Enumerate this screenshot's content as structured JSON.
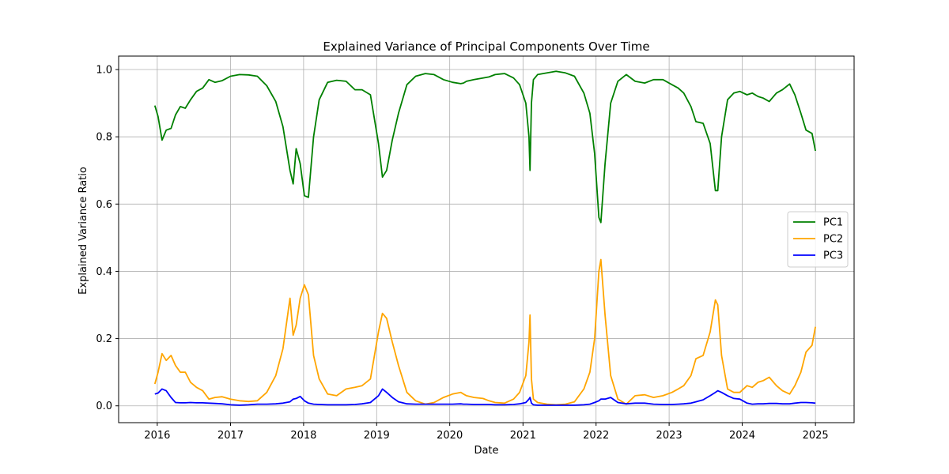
{
  "chart_data": {
    "type": "line",
    "title": "Explained Variance of Principal Components Over Time",
    "xlabel": "Date",
    "ylabel": "Explained Variance Ratio",
    "xlim": [
      "2015-06-22",
      "2025-07-13"
    ],
    "ylim": [
      -0.05,
      1.04
    ],
    "x_ticks": [
      "2016",
      "2017",
      "2018",
      "2019",
      "2020",
      "2021",
      "2022",
      "2023",
      "2024",
      "2025"
    ],
    "y_ticks": [
      "0.0",
      "0.2",
      "0.4",
      "0.6",
      "0.8",
      "1.0"
    ],
    "grid": true,
    "legend_position": "center-right",
    "x": [
      "2015-12-20",
      "2016-01-05",
      "2016-01-25",
      "2016-02-15",
      "2016-03-10",
      "2016-04-01",
      "2016-04-25",
      "2016-05-20",
      "2016-06-15",
      "2016-07-15",
      "2016-08-15",
      "2016-09-15",
      "2016-10-15",
      "2016-11-20",
      "2017-01-01",
      "2017-02-15",
      "2017-04-01",
      "2017-05-15",
      "2017-07-01",
      "2017-08-15",
      "2017-09-20",
      "2017-10-25",
      "2017-11-10",
      "2017-11-25",
      "2017-12-15",
      "2018-01-05",
      "2018-01-25",
      "2018-02-20",
      "2018-03-20",
      "2018-05-01",
      "2018-06-15",
      "2018-08-01",
      "2018-09-15",
      "2018-10-20",
      "2018-12-01",
      "2019-01-10",
      "2019-01-30",
      "2019-02-20",
      "2019-03-20",
      "2019-04-20",
      "2019-06-01",
      "2019-07-15",
      "2019-09-01",
      "2019-10-15",
      "2019-12-01",
      "2020-01-15",
      "2020-02-25",
      "2020-03-10",
      "2020-03-25",
      "2020-05-01",
      "2020-06-15",
      "2020-07-15",
      "2020-08-15",
      "2020-10-01",
      "2020-11-15",
      "2020-12-15",
      "2021-01-15",
      "2021-01-31",
      "2021-02-05",
      "2021-02-12",
      "2021-02-22",
      "2021-03-15",
      "2021-05-01",
      "2021-06-15",
      "2021-08-01",
      "2021-09-15",
      "2021-11-01",
      "2021-12-01",
      "2021-12-25",
      "2022-01-15",
      "2022-01-25",
      "2022-02-15",
      "2022-03-15",
      "2022-04-20",
      "2022-06-01",
      "2022-07-15",
      "2022-09-01",
      "2022-10-15",
      "2022-12-01",
      "2023-01-15",
      "2023-02-15",
      "2023-03-15",
      "2023-04-20",
      "2023-05-15",
      "2023-06-20",
      "2023-07-25",
      "2023-08-20",
      "2023-09-01",
      "2023-09-20",
      "2023-10-20",
      "2023-11-20",
      "2023-12-20",
      "2024-01-25",
      "2024-02-20",
      "2024-03-20",
      "2024-04-15",
      "2024-05-15",
      "2024-06-20",
      "2024-07-20",
      "2024-08-25",
      "2024-09-20",
      "2024-10-20",
      "2024-11-15",
      "2024-12-15",
      "2025-01-01"
    ],
    "series": [
      {
        "name": "PC1",
        "color": "#008000",
        "values": [
          0.893,
          0.86,
          0.79,
          0.82,
          0.825,
          0.865,
          0.89,
          0.885,
          0.91,
          0.935,
          0.945,
          0.97,
          0.962,
          0.967,
          0.98,
          0.985,
          0.984,
          0.98,
          0.952,
          0.905,
          0.83,
          0.7,
          0.66,
          0.765,
          0.72,
          0.625,
          0.62,
          0.8,
          0.91,
          0.962,
          0.968,
          0.965,
          0.94,
          0.94,
          0.925,
          0.78,
          0.68,
          0.7,
          0.79,
          0.87,
          0.955,
          0.98,
          0.988,
          0.985,
          0.97,
          0.962,
          0.958,
          0.96,
          0.965,
          0.97,
          0.975,
          0.978,
          0.985,
          0.988,
          0.975,
          0.955,
          0.9,
          0.8,
          0.7,
          0.9,
          0.97,
          0.985,
          0.99,
          0.995,
          0.99,
          0.98,
          0.93,
          0.87,
          0.75,
          0.56,
          0.545,
          0.72,
          0.9,
          0.965,
          0.985,
          0.965,
          0.96,
          0.97,
          0.97,
          0.955,
          0.945,
          0.93,
          0.89,
          0.845,
          0.84,
          0.78,
          0.64,
          0.64,
          0.8,
          0.91,
          0.93,
          0.935,
          0.925,
          0.93,
          0.92,
          0.915,
          0.905,
          0.93,
          0.94,
          0.957,
          0.925,
          0.87,
          0.82,
          0.81,
          0.758
        ]
      },
      {
        "name": "PC2",
        "color": "#FFA500",
        "values": [
          0.065,
          0.1,
          0.155,
          0.135,
          0.15,
          0.12,
          0.1,
          0.1,
          0.07,
          0.055,
          0.045,
          0.02,
          0.025,
          0.027,
          0.02,
          0.015,
          0.013,
          0.015,
          0.04,
          0.09,
          0.17,
          0.32,
          0.21,
          0.24,
          0.32,
          0.36,
          0.33,
          0.15,
          0.08,
          0.035,
          0.03,
          0.05,
          0.055,
          0.06,
          0.08,
          0.22,
          0.275,
          0.26,
          0.19,
          0.12,
          0.04,
          0.015,
          0.005,
          0.01,
          0.025,
          0.035,
          0.04,
          0.035,
          0.03,
          0.025,
          0.022,
          0.015,
          0.01,
          0.008,
          0.02,
          0.04,
          0.09,
          0.19,
          0.27,
          0.08,
          0.02,
          0.01,
          0.005,
          0.003,
          0.005,
          0.012,
          0.05,
          0.1,
          0.2,
          0.4,
          0.435,
          0.27,
          0.09,
          0.02,
          0.005,
          0.03,
          0.033,
          0.025,
          0.03,
          0.04,
          0.05,
          0.06,
          0.09,
          0.14,
          0.15,
          0.22,
          0.315,
          0.3,
          0.15,
          0.05,
          0.04,
          0.04,
          0.06,
          0.055,
          0.07,
          0.075,
          0.085,
          0.06,
          0.045,
          0.035,
          0.06,
          0.1,
          0.16,
          0.18,
          0.235
        ]
      },
      {
        "name": "PC3",
        "color": "#0000FF",
        "values": [
          0.035,
          0.038,
          0.05,
          0.045,
          0.025,
          0.01,
          0.009,
          0.009,
          0.01,
          0.009,
          0.009,
          0.008,
          0.007,
          0.006,
          0.003,
          0.002,
          0.003,
          0.005,
          0.005,
          0.006,
          0.008,
          0.012,
          0.02,
          0.022,
          0.028,
          0.015,
          0.008,
          0.005,
          0.004,
          0.003,
          0.003,
          0.003,
          0.004,
          0.006,
          0.01,
          0.03,
          0.05,
          0.04,
          0.025,
          0.012,
          0.006,
          0.005,
          0.005,
          0.005,
          0.005,
          0.005,
          0.006,
          0.005,
          0.005,
          0.004,
          0.004,
          0.004,
          0.003,
          0.003,
          0.004,
          0.006,
          0.01,
          0.02,
          0.025,
          0.008,
          0.003,
          0.002,
          0.002,
          0.002,
          0.002,
          0.002,
          0.003,
          0.005,
          0.01,
          0.015,
          0.02,
          0.02,
          0.025,
          0.01,
          0.006,
          0.008,
          0.008,
          0.005,
          0.004,
          0.004,
          0.005,
          0.006,
          0.008,
          0.012,
          0.018,
          0.03,
          0.04,
          0.045,
          0.04,
          0.03,
          0.022,
          0.02,
          0.008,
          0.005,
          0.006,
          0.006,
          0.007,
          0.007,
          0.006,
          0.006,
          0.008,
          0.01,
          0.01,
          0.009,
          0.008
        ]
      }
    ]
  }
}
